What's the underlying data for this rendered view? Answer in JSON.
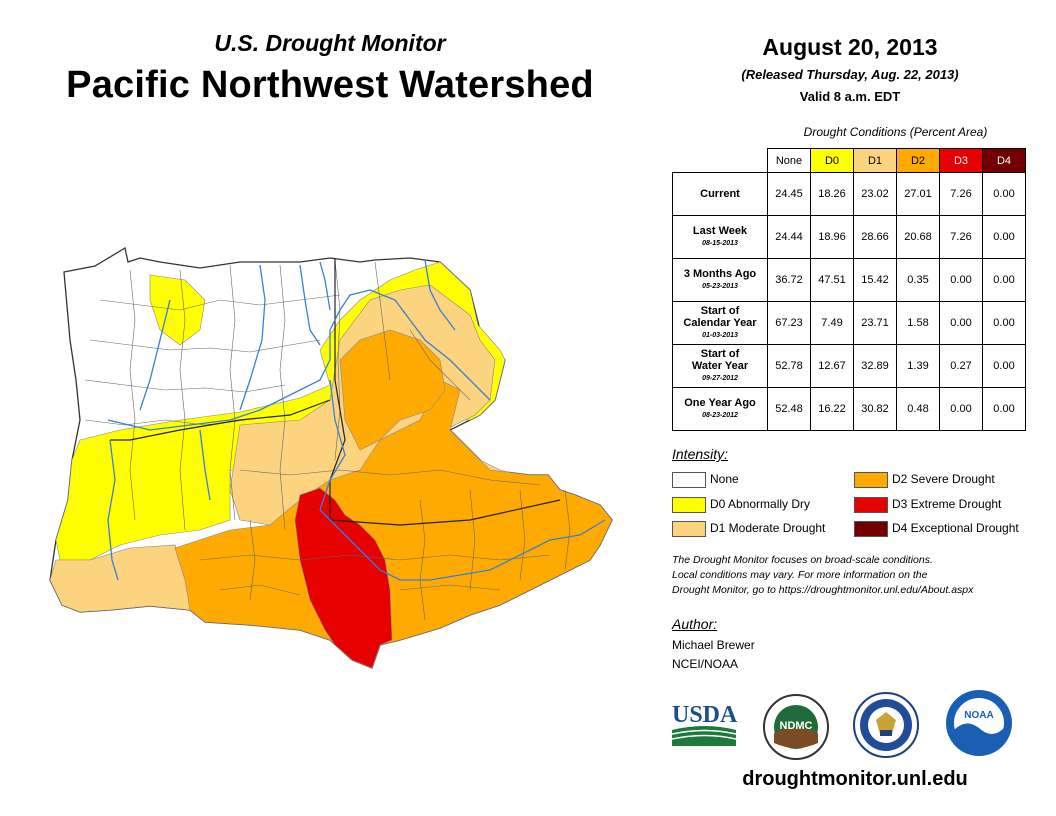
{
  "header": {
    "subtitle": "U.S. Drought Monitor",
    "title": "Pacific Northwest Watershed",
    "date": "August 20, 2013",
    "released": "(Released Thursday, Aug. 22, 2013)",
    "valid": "Valid 8 a.m. EDT"
  },
  "table": {
    "caption": "Drought Conditions (Percent Area)",
    "columns": [
      "None",
      "D0",
      "D1",
      "D2",
      "D3",
      "D4"
    ],
    "rows": [
      {
        "label": "Current",
        "date": "",
        "values": [
          "24.45",
          "18.26",
          "23.02",
          "27.01",
          "7.26",
          "0.00"
        ]
      },
      {
        "label": "Last Week",
        "date": "08-15-2013",
        "values": [
          "24.44",
          "18.96",
          "28.66",
          "20.68",
          "7.26",
          "0.00"
        ]
      },
      {
        "label": "3 Months Ago",
        "date": "05-23-2013",
        "values": [
          "36.72",
          "47.51",
          "15.42",
          "0.35",
          "0.00",
          "0.00"
        ]
      },
      {
        "label": "Start of Calendar Year",
        "date": "01-03-2013",
        "values": [
          "67.23",
          "7.49",
          "23.71",
          "1.58",
          "0.00",
          "0.00"
        ]
      },
      {
        "label": "Start of Water Year",
        "date": "09-27-2012",
        "values": [
          "52.78",
          "12.67",
          "32.89",
          "1.39",
          "0.27",
          "0.00"
        ]
      },
      {
        "label": "One Year Ago",
        "date": "08-23-2012",
        "values": [
          "52.48",
          "16.22",
          "30.82",
          "0.48",
          "0.00",
          "0.00"
        ]
      }
    ]
  },
  "legend": {
    "title": "Intensity:",
    "items": [
      {
        "label": "None",
        "color": "#ffffff"
      },
      {
        "label": "D0 Abnormally Dry",
        "color": "#ffff00"
      },
      {
        "label": "D1 Moderate Drought",
        "color": "#fcd37f"
      },
      {
        "label": "D2 Severe Drought",
        "color": "#ffaa00"
      },
      {
        "label": "D3 Extreme Drought",
        "color": "#e60000"
      },
      {
        "label": "D4 Exceptional Drought",
        "color": "#730000"
      }
    ]
  },
  "note": {
    "line1": "The Drought Monitor focuses on broad-scale conditions.",
    "line2": "Local conditions may vary. For more information on the",
    "line3": "Drought Monitor, go to https://droughtmonitor.unl.edu/About.aspx"
  },
  "author": {
    "title": "Author:",
    "name": "Michael Brewer",
    "org": "NCEI/NOAA"
  },
  "logos": {
    "usda": "USDA",
    "ndmc": "NDMC",
    "noaa": "NOAA"
  },
  "footer": {
    "url": "droughtmonitor.unl.edu"
  },
  "colors": {
    "river": "#3a7fd5",
    "boundary": "#555555"
  }
}
